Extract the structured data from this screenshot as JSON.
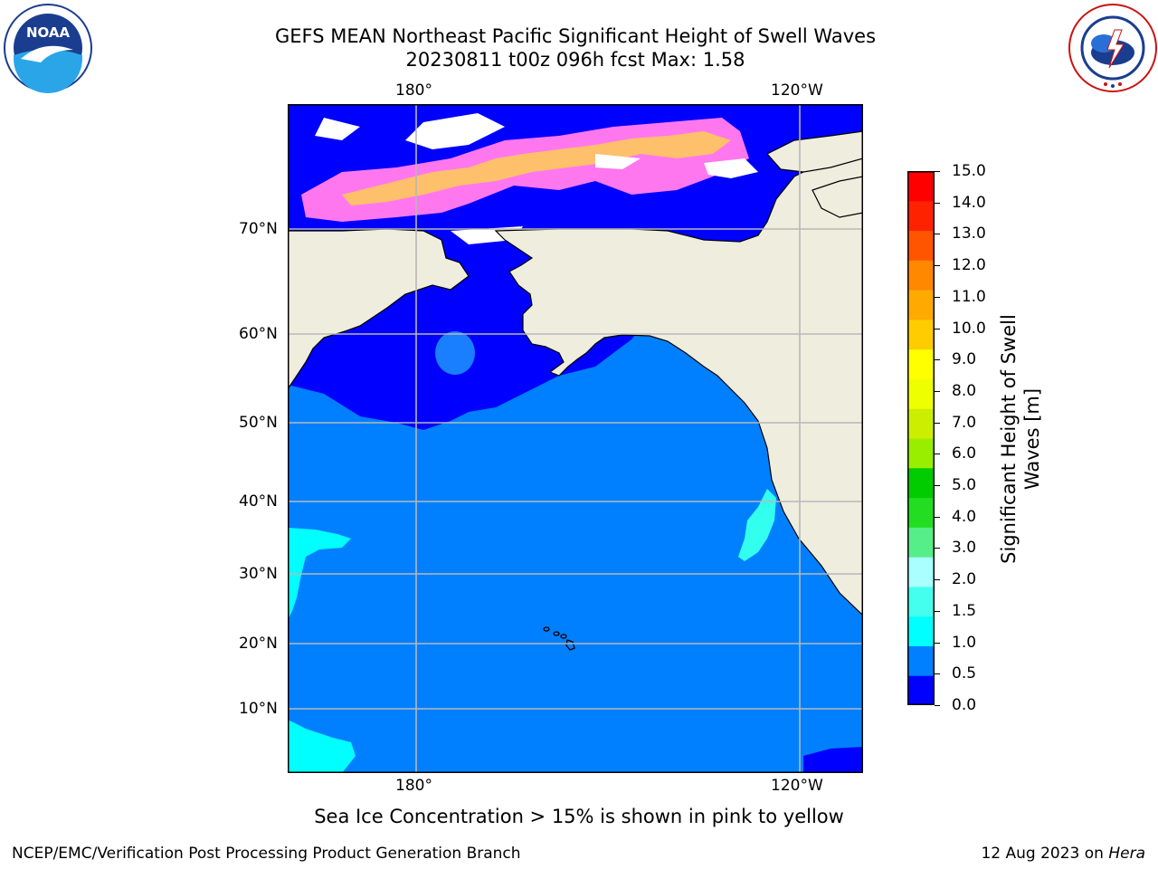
{
  "header": {
    "title_line1": "GEFS MEAN Northeast Pacific Significant Height of Swell Waves",
    "title_line2": "20230811 t00z 096h fcst   Max: 1.58"
  },
  "logos": {
    "left": "NOAA",
    "right": "NATIONAL WEATHER SERVICE"
  },
  "map": {
    "lon_labels_top": [
      "180°",
      "120°W"
    ],
    "lon_labels_bottom": [
      "180°",
      "120°W"
    ],
    "lat_labels": [
      "70°N",
      "60°N",
      "50°N",
      "40°N",
      "30°N",
      "20°N",
      "10°N"
    ],
    "colors": {
      "ocean": "#0080ff",
      "low": "#0000ff",
      "land": "#efedde",
      "swell_1_1_5": "#00ffff",
      "ice_pink": "#ff77ee",
      "ice_yellow": "#ffcc44"
    }
  },
  "colorbar": {
    "ticks": [
      "15.0",
      "14.0",
      "13.0",
      "12.0",
      "11.0",
      "10.0",
      "9.0",
      "8.0",
      "7.0",
      "6.0",
      "5.0",
      "4.0",
      "3.0",
      "2.0",
      "1.5",
      "1.0",
      "0.5",
      "0.0"
    ],
    "colors": [
      "#0000ff",
      "#0080ff",
      "#00ffff",
      "#44ffee",
      "#aaffff",
      "#55ee88",
      "#22dd22",
      "#00cc00",
      "#99ee00",
      "#ccee00",
      "#eeff00",
      "#ffff00",
      "#ffcc00",
      "#ffaa00",
      "#ff8800",
      "#ff5500",
      "#ff2200",
      "#ff0000"
    ],
    "label": "Significant Height of Swell Waves [m]"
  },
  "caption": "Sea Ice Concentration > 15% is shown in pink to yellow",
  "footer": {
    "left": "NCEP/EMC/Verification Post Processing Product Generation Branch",
    "right_date": "12 Aug 2023 on ",
    "right_machine": "Hera"
  }
}
